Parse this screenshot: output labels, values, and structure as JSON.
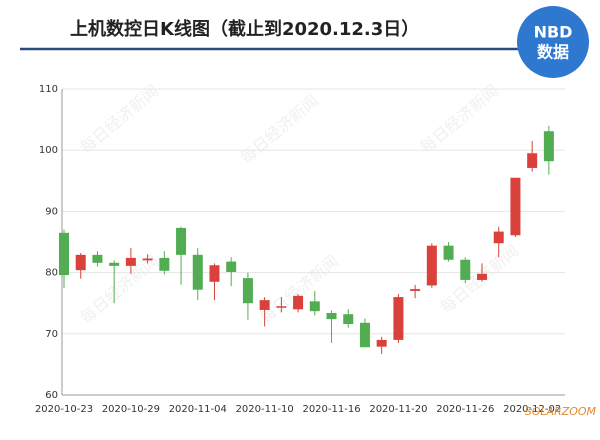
{
  "chart_data": {
    "type": "candlestick",
    "title": "上机数控日K线图（截止到2020.12.3日）",
    "logo": {
      "top": "NBD",
      "bottom": "数据"
    },
    "watermark": "每日经济新闻",
    "source_mark": "SOLARZOOM",
    "categories": [
      "2020-10-23",
      null,
      null,
      null,
      "2020-10-29",
      null,
      null,
      null,
      "2020-11-04",
      null,
      null,
      null,
      "2020-11-10",
      null,
      null,
      null,
      "2020-11-16",
      null,
      null,
      null,
      "2020-11-20",
      null,
      null,
      null,
      "2020-11-26",
      null,
      null,
      null,
      "2020-12-02",
      null
    ],
    "open": [
      86.5,
      80.4,
      82.9,
      81.6,
      81.1,
      82.0,
      82.4,
      87.3,
      82.9,
      78.5,
      81.8,
      79.1,
      73.9,
      74.3,
      74.0,
      75.3,
      73.4,
      73.2,
      71.8,
      67.9,
      69.0,
      77.0,
      77.9,
      84.4,
      82.1,
      78.8,
      84.8,
      86.1,
      97.1,
      103.1
    ],
    "high": [
      87.0,
      83.2,
      83.5,
      82.0,
      84.0,
      83.0,
      83.5,
      87.5,
      84.0,
      81.5,
      82.5,
      80.0,
      76.0,
      76.0,
      76.5,
      77.0,
      73.8,
      74.0,
      72.5,
      69.5,
      76.5,
      78.0,
      84.8,
      85.0,
      82.5,
      81.5,
      87.5,
      95.5,
      101.5,
      104.0
    ],
    "low": [
      77.5,
      79.0,
      81.0,
      75.0,
      79.8,
      81.5,
      79.7,
      78.0,
      75.5,
      75.5,
      77.8,
      72.3,
      71.2,
      73.5,
      73.5,
      73.0,
      68.5,
      71.0,
      67.8,
      66.7,
      68.5,
      75.8,
      77.5,
      81.8,
      78.3,
      78.5,
      82.5,
      85.8,
      96.5,
      96.0
    ],
    "close": [
      79.6,
      82.9,
      81.6,
      81.1,
      82.4,
      82.3,
      80.3,
      82.9,
      77.2,
      81.2,
      80.1,
      75.0,
      75.5,
      74.5,
      76.2,
      73.7,
      72.4,
      71.6,
      67.8,
      69.0,
      76.0,
      77.3,
      84.4,
      82.1,
      78.8,
      79.8,
      86.7,
      95.5,
      99.5,
      98.2
    ],
    "up_color": "#d9413a",
    "down_color": "#52ad52",
    "ylim": [
      60,
      110
    ],
    "yticks": [
      60,
      70,
      80,
      90,
      100,
      110
    ],
    "grid": true
  }
}
